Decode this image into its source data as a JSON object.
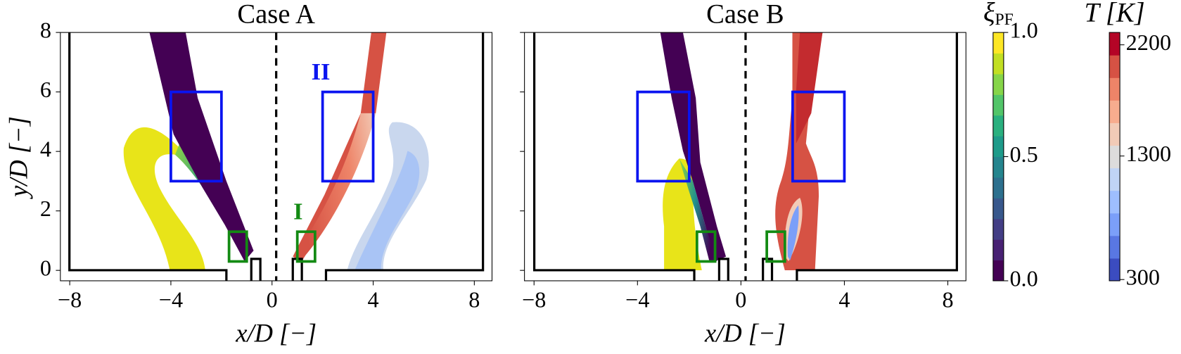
{
  "chart_data": [
    {
      "type": "contour",
      "title": "Case A",
      "xlabel": "x/D [−]",
      "ylabel": "y/D [−]",
      "xlim": [
        -8.37,
        8.7
      ],
      "ylim": [
        -0.35,
        8.0
      ],
      "xticks": [
        {
          "value": -8,
          "label": "−8"
        },
        {
          "value": -4,
          "label": "−4"
        },
        0,
        4,
        8
      ],
      "yticks": [
        0,
        2,
        4,
        6,
        8
      ],
      "show_ytick_labels": true,
      "boxes": [
        {
          "color": "#0a14f0",
          "x": [
            -4,
            -2
          ],
          "y": [
            3,
            6
          ]
        },
        {
          "color": "#0a14f0",
          "x": [
            2,
            4
          ],
          "y": [
            3,
            6
          ]
        },
        {
          "color": "#138a13",
          "x": [
            -1.7,
            -1
          ],
          "y": [
            0.3,
            1.3
          ]
        },
        {
          "color": "#138a13",
          "x": [
            1,
            1.7
          ],
          "y": [
            0.3,
            1.3
          ]
        }
      ],
      "annotations": [
        "II",
        "I"
      ]
    },
    {
      "type": "contour",
      "title": "Case B",
      "xlabel": "x/D [−]",
      "xlim": [
        -8.37,
        8.7
      ],
      "ylim": [
        -0.35,
        8.0
      ],
      "xticks": [
        {
          "value": -8,
          "label": "−8"
        },
        {
          "value": -4,
          "label": "−4"
        },
        0,
        4,
        8
      ],
      "yticks": [
        0,
        2,
        4,
        6,
        8
      ],
      "show_ytick_labels": false,
      "boxes": [
        {
          "color": "#0a14f0",
          "x": [
            -4,
            -2
          ],
          "y": [
            3,
            6
          ]
        },
        {
          "color": "#0a14f0",
          "x": [
            2,
            4
          ],
          "y": [
            3,
            6
          ]
        },
        {
          "color": "#138a13",
          "x": [
            -1.7,
            -1
          ],
          "y": [
            0.3,
            1.3
          ]
        },
        {
          "color": "#138a13",
          "x": [
            1,
            1.7
          ],
          "y": [
            0.3,
            1.3
          ]
        }
      ]
    },
    {
      "type": "colorbar",
      "label": "ξ",
      "label_sub": "PF",
      "clim": [
        0,
        1.0
      ],
      "ticks": [
        {
          "value": 0,
          "label": "0.0"
        },
        {
          "value": 0.5,
          "label": "0.5"
        },
        {
          "value": 1.0,
          "label": "1.0"
        }
      ],
      "colors": [
        "#440154",
        "#482173",
        "#433e85",
        "#38588c",
        "#2d708e",
        "#25858e",
        "#1e9b8a",
        "#2ab07f",
        "#52c569",
        "#86d549",
        "#c2df23",
        "#fde725"
      ]
    },
    {
      "type": "colorbar",
      "label": "T [K]",
      "clim": [
        290,
        2300
      ],
      "ticks": [
        300,
        1300,
        2200
      ],
      "colors": [
        "#3b4cc0",
        "#5977e3",
        "#7b9ff9",
        "#9ebeff",
        "#c0d4f5",
        "#dddcdc",
        "#f2cbb7",
        "#f7ac8e",
        "#ee8468",
        "#d65244",
        "#b40426"
      ]
    }
  ]
}
